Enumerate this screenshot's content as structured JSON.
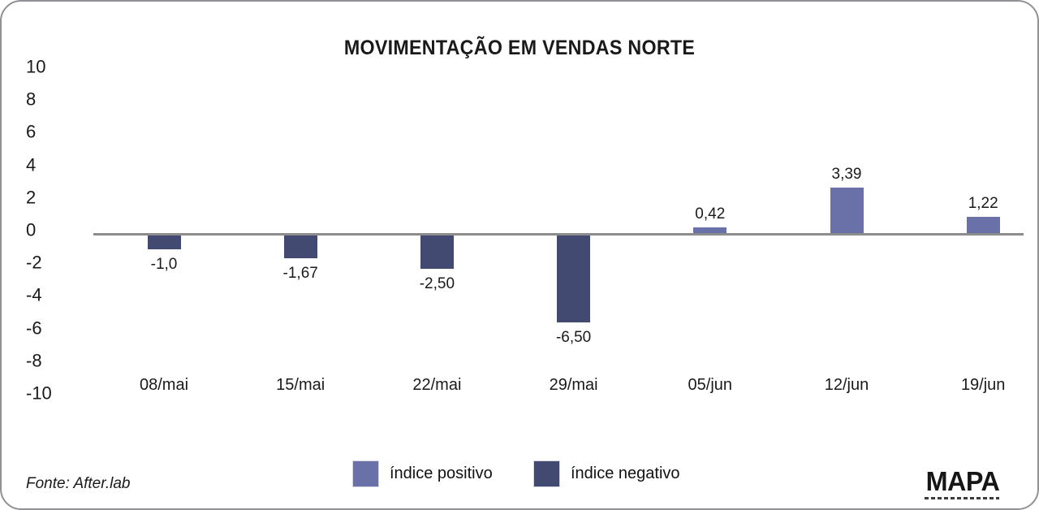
{
  "card": {
    "title": "MOVIMENTAÇÃO EM VENDAS NORTE",
    "source": "Fonte: After.lab",
    "logo_text": "MAPA"
  },
  "colors": {
    "positive_bar": "#6971a8",
    "negative_bar": "#424a72",
    "axis_line": "#8c8c8c",
    "text": "#1a1a1a"
  },
  "chart_data": {
    "type": "bar",
    "title": "MOVIMENTAÇÃO EM VENDAS NORTE",
    "categories": [
      "08/mai",
      "15/mai",
      "22/mai",
      "29/mai",
      "05/jun",
      "12/jun",
      "19/jun"
    ],
    "values": [
      -1.0,
      -1.67,
      -2.5,
      -6.5,
      0.42,
      3.39,
      1.22
    ],
    "value_labels": [
      "-1,0",
      "-1,67",
      "-2,50",
      "-6,50",
      "0,42",
      "3,39",
      "1,22"
    ],
    "y_ticks": [
      10,
      8,
      6,
      4,
      2,
      0,
      -2,
      -4,
      -6,
      -8,
      -10
    ],
    "ylim": [
      -10,
      10
    ],
    "xlabel": "",
    "ylabel": "",
    "grid": false,
    "legend_position": "bottom",
    "source": "Fonte: After.lab"
  },
  "legend": {
    "items": [
      {
        "key": "positive",
        "label": "índice positivo",
        "color": "#6971a8"
      },
      {
        "key": "negative",
        "label": "índice negativo",
        "color": "#424a72"
      }
    ]
  }
}
